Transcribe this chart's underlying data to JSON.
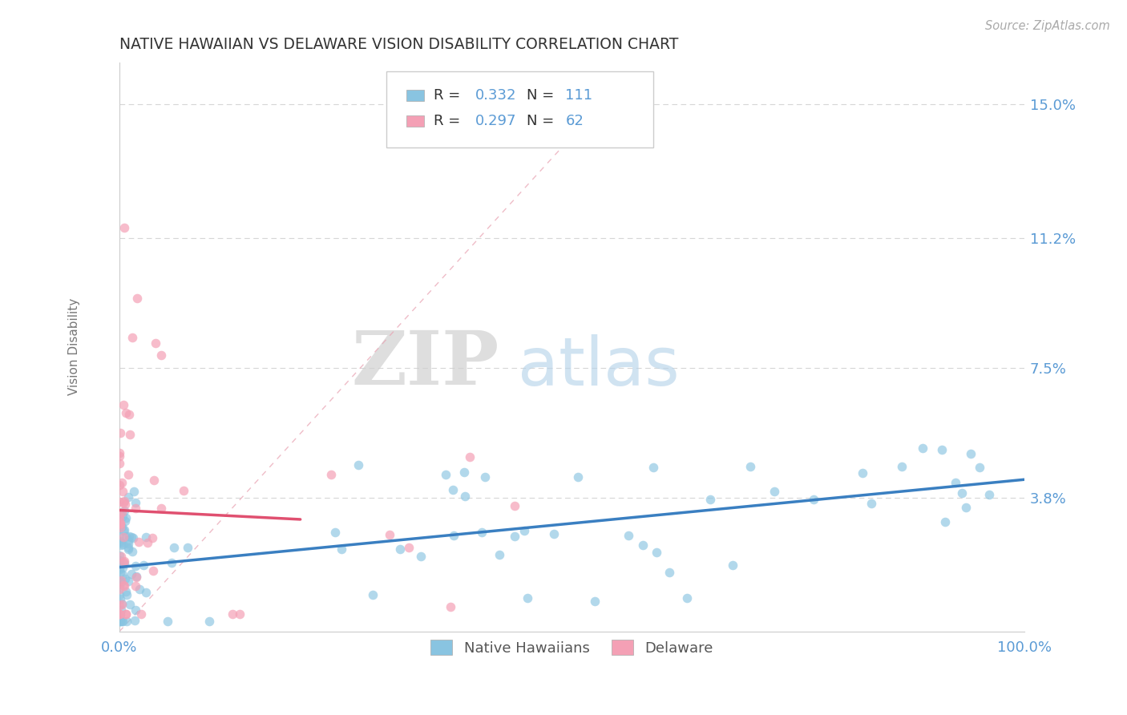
{
  "title": "NATIVE HAWAIIAN VS DELAWARE VISION DISABILITY CORRELATION CHART",
  "source": "Source: ZipAtlas.com",
  "ylabel": "Vision Disability",
  "xlim": [
    0.0,
    1.0
  ],
  "ylim": [
    0.0,
    0.162
  ],
  "yticks": [
    0.038,
    0.075,
    0.112,
    0.15
  ],
  "ytick_labels": [
    "3.8%",
    "7.5%",
    "11.2%",
    "15.0%"
  ],
  "xtick_labels": [
    "0.0%",
    "100.0%"
  ],
  "xticks": [
    0.0,
    1.0
  ],
  "r_native": 0.332,
  "n_native": 111,
  "r_delaware": 0.297,
  "n_delaware": 62,
  "color_native": "#89c4e1",
  "color_delaware": "#f4a0b5",
  "trendline_native_color": "#3a7fc1",
  "trendline_delaware_color": "#e05070",
  "diagonal_color": "#f4a0b5",
  "grid_color": "#cccccc",
  "title_color": "#333333",
  "axis_label_color": "#777777",
  "tick_label_color": "#5b9bd5",
  "watermark_zip": "ZIP",
  "watermark_atlas": "atlas",
  "legend_r_color": "#5b9bd5",
  "legend_n_color": "#5b9bd5"
}
